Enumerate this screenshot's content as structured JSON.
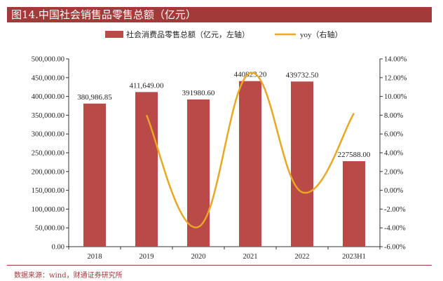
{
  "header": {
    "title": "图14.中国社会销售品零售总额（亿元）"
  },
  "source": {
    "text": "数据来源：wind，财通证券研究所"
  },
  "colors": {
    "bar": "#b94a48",
    "line": "#e8a825",
    "title_bg": "#a33a3a",
    "axis": "#333333"
  },
  "chart_data": {
    "type": "bar",
    "categories": [
      "2018",
      "2019",
      "2020",
      "2021",
      "2022",
      "2023H1"
    ],
    "series": [
      {
        "name": "社会消费品零售总额（亿元，左轴）",
        "type": "bar",
        "axis": "left",
        "values": [
          380986.85,
          411649.0,
          391980.6,
          440823.2,
          439732.5,
          227588.0
        ],
        "labels": [
          "380,986.85",
          "411,649.00",
          "391980.60",
          "440823.20",
          "439732.50",
          "227588.00"
        ]
      },
      {
        "name": "yoy（右轴）",
        "type": "line",
        "axis": "right",
        "values": [
          null,
          8.0,
          -3.9,
          12.5,
          -0.2,
          8.2
        ]
      }
    ],
    "y_left": {
      "min": 0,
      "max": 500000,
      "ticks": [
        "0.00",
        "50,000.00",
        "100,000.00",
        "150,000.00",
        "200,000.00",
        "250,000.00",
        "300,000.00",
        "350,000.00",
        "400,000.00",
        "450,000.00",
        "500,000.00"
      ]
    },
    "y_right": {
      "min": -6,
      "max": 14,
      "ticks": [
        "-6.00%",
        "-4.00%",
        "-2.00%",
        "0.00%",
        "2.00%",
        "4.00%",
        "6.00%",
        "8.00%",
        "10.00%",
        "12.00%",
        "14.00%"
      ]
    },
    "legend": [
      "社会消费品零售总额（亿元，左轴）",
      "yoy（右轴）"
    ],
    "legend_position": "top-center"
  }
}
